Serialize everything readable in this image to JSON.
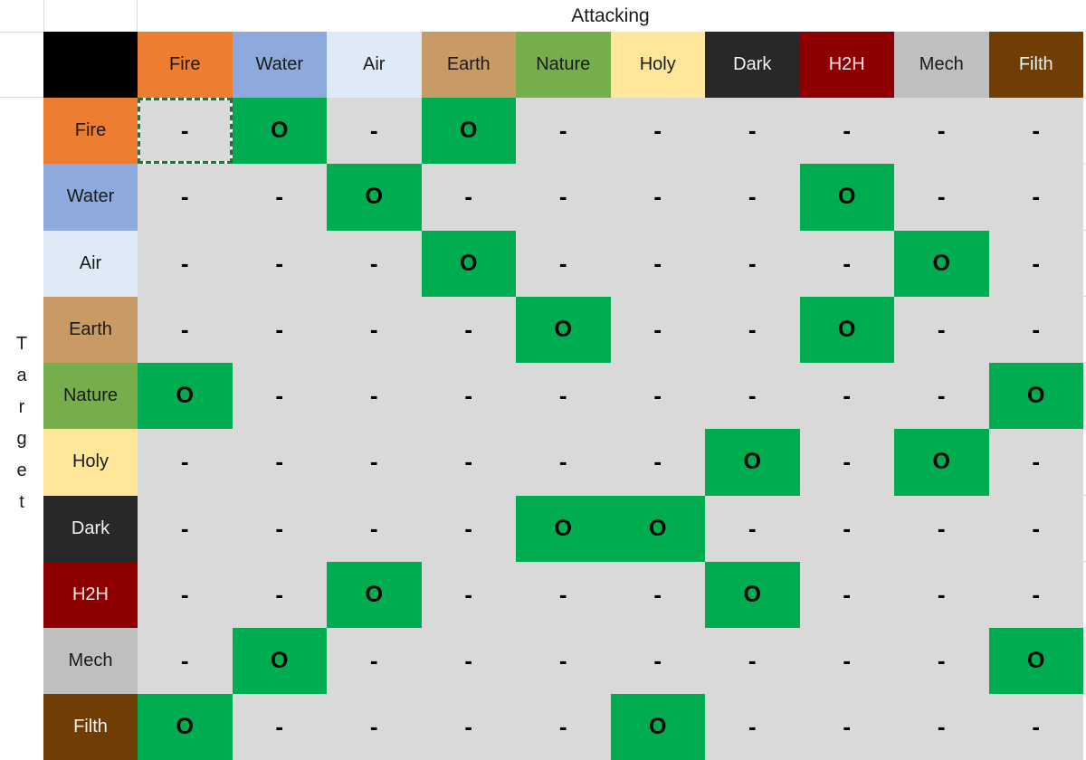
{
  "app": {
    "top_axis_title": "Attacking",
    "side_axis_title": "Target"
  },
  "legend": {
    "hit_symbol": "O",
    "miss_symbol": "-"
  },
  "chart_data": {
    "type": "heatmap",
    "x_axis_label": "Attacking",
    "y_axis_label": "Target",
    "columns": [
      "Fire",
      "Water",
      "Air",
      "Earth",
      "Nature",
      "Holy",
      "Dark",
      "H2H",
      "Mech",
      "Filth"
    ],
    "rows": [
      "Fire",
      "Water",
      "Air",
      "Earth",
      "Nature",
      "Holy",
      "Dark",
      "H2H",
      "Mech",
      "Filth"
    ],
    "values": [
      [
        "-",
        "O",
        "-",
        "O",
        "-",
        "-",
        "-",
        "-",
        "-",
        "-"
      ],
      [
        "-",
        "-",
        "O",
        "-",
        "-",
        "-",
        "-",
        "O",
        "-",
        "-"
      ],
      [
        "-",
        "-",
        "-",
        "O",
        "-",
        "-",
        "-",
        "-",
        "O",
        "-"
      ],
      [
        "-",
        "-",
        "-",
        "-",
        "O",
        "-",
        "-",
        "O",
        "-",
        "-"
      ],
      [
        "O",
        "-",
        "-",
        "-",
        "-",
        "-",
        "-",
        "-",
        "-",
        "O"
      ],
      [
        "-",
        "-",
        "-",
        "-",
        "-",
        "-",
        "O",
        "-",
        "O",
        "-"
      ],
      [
        "-",
        "-",
        "-",
        "-",
        "O",
        "O",
        "-",
        "-",
        "-",
        "-"
      ],
      [
        "-",
        "-",
        "O",
        "-",
        "-",
        "-",
        "O",
        "-",
        "-",
        "-"
      ],
      [
        "-",
        "O",
        "-",
        "-",
        "-",
        "-",
        "-",
        "-",
        "-",
        "O"
      ],
      [
        "O",
        "-",
        "-",
        "-",
        "-",
        "O",
        "-",
        "-",
        "-",
        "-"
      ]
    ],
    "hit_symbol": "O",
    "miss_symbol": "-"
  },
  "type_styles": {
    "Fire": {
      "bg": "#ED7D31",
      "fg": "#1a1a1a"
    },
    "Water": {
      "bg": "#8EA9DB",
      "fg": "#1a1a1a"
    },
    "Air": {
      "bg": "#DEEAF6",
      "fg": "#1a1a1a"
    },
    "Earth": {
      "bg": "#C89B66",
      "fg": "#1a1a1a"
    },
    "Nature": {
      "bg": "#76AE4C",
      "fg": "#1a1a1a"
    },
    "Holy": {
      "bg": "#FFE699",
      "fg": "#1a1a1a"
    },
    "Dark": {
      "bg": "#282829",
      "fg": "#F2F2F2"
    },
    "H2H": {
      "bg": "#8E0000",
      "fg": "#F4EAEA"
    },
    "Mech": {
      "bg": "#BFBFBF",
      "fg": "#1a1a1a"
    },
    "Filth": {
      "bg": "#703E05",
      "fg": "#F2F2F2"
    }
  },
  "colors": {
    "miss_cell_bg": "#D9D9D9",
    "hit_cell_bg": "#00AC50",
    "corner_bg": "#000000",
    "marquee": "#2E6B43",
    "gridline": "#D9D9D9"
  },
  "selected_cell": {
    "row_index": 0,
    "col_index": 0
  }
}
